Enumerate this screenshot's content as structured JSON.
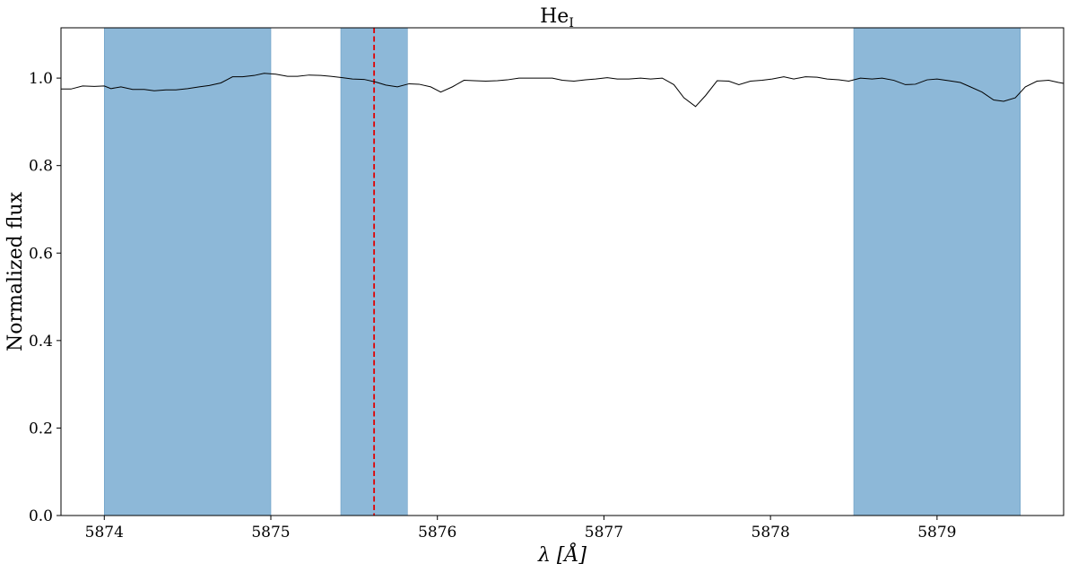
{
  "chart_data": {
    "type": "line",
    "title": "He",
    "title_subscript": "I",
    "xlabel": "λ [Å]",
    "ylabel": "Normalized flux",
    "xlim": [
      5873.74,
      5879.76
    ],
    "ylim": [
      0.0,
      1.115
    ],
    "x_ticks": [
      5874,
      5875,
      5876,
      5877,
      5878,
      5879
    ],
    "y_ticks": [
      0.0,
      0.2,
      0.4,
      0.6,
      0.8,
      1.0
    ],
    "x_tick_labels": [
      "5874",
      "5875",
      "5876",
      "5877",
      "5878",
      "5879"
    ],
    "y_tick_labels": [
      "0.0",
      "0.2",
      "0.4",
      "0.6",
      "0.8",
      "1.0"
    ],
    "grid": false,
    "colors": {
      "line": "#000000",
      "band": "#8db8d8",
      "marker": "#e00000"
    },
    "shaded_bands": [
      {
        "x0": 5874.0,
        "x1": 5875.0
      },
      {
        "x0": 5875.42,
        "x1": 5875.82
      },
      {
        "x0": 5878.5,
        "x1": 5879.5
      }
    ],
    "vertical_lines": [
      {
        "x": 5875.62,
        "style": "dashed"
      }
    ],
    "series": [
      {
        "x": [
          5873.74,
          5873.8,
          5873.87,
          5873.94,
          5874.0,
          5874.04,
          5874.1,
          5874.17,
          5874.24,
          5874.3,
          5874.37,
          5874.43,
          5874.5,
          5874.57,
          5874.63,
          5874.7,
          5874.77,
          5874.83,
          5874.9,
          5874.96,
          5875.03,
          5875.1,
          5875.16,
          5875.23,
          5875.3,
          5875.36,
          5875.43,
          5875.49,
          5875.56,
          5875.63,
          5875.69,
          5875.76,
          5875.83,
          5875.89,
          5875.96,
          5876.02,
          5876.09,
          5876.16,
          5876.22,
          5876.29,
          5876.36,
          5876.42,
          5876.49,
          5876.55,
          5876.62,
          5876.69,
          5876.75,
          5876.82,
          5876.89,
          5876.95,
          5877.02,
          5877.08,
          5877.15,
          5877.22,
          5877.28,
          5877.35,
          5877.42,
          5877.48,
          5877.55,
          5877.61,
          5877.68,
          5877.75,
          5877.81,
          5877.88,
          5877.95,
          5878.01,
          5878.08,
          5878.14,
          5878.21,
          5878.28,
          5878.34,
          5878.41,
          5878.47,
          5878.54,
          5878.61,
          5878.67,
          5878.74,
          5878.81,
          5878.87,
          5878.94,
          5879.0,
          5879.07,
          5879.14,
          5879.2,
          5879.27,
          5879.34,
          5879.4,
          5879.47,
          5879.53,
          5879.6,
          5879.67,
          5879.73,
          5879.76
        ],
        "y": [
          0.975,
          0.975,
          0.982,
          0.981,
          0.982,
          0.976,
          0.98,
          0.974,
          0.974,
          0.971,
          0.973,
          0.973,
          0.976,
          0.98,
          0.983,
          0.989,
          1.003,
          1.003,
          1.006,
          1.011,
          1.009,
          1.004,
          1.004,
          1.007,
          1.006,
          1.004,
          1.001,
          0.998,
          0.997,
          0.991,
          0.984,
          0.98,
          0.987,
          0.986,
          0.98,
          0.968,
          0.98,
          0.995,
          0.994,
          0.993,
          0.994,
          0.996,
          1.0,
          1.0,
          1.0,
          1.0,
          0.995,
          0.993,
          0.996,
          0.998,
          1.001,
          0.998,
          0.998,
          1.0,
          0.998,
          1.0,
          0.985,
          0.955,
          0.935,
          0.96,
          0.994,
          0.993,
          0.985,
          0.993,
          0.995,
          0.998,
          1.003,
          0.998,
          1.003,
          1.002,
          0.998,
          0.996,
          0.993,
          1.0,
          0.998,
          1.0,
          0.995,
          0.985,
          0.986,
          0.996,
          0.998,
          0.994,
          0.99,
          0.98,
          0.968,
          0.95,
          0.947,
          0.955,
          0.98,
          0.993,
          0.995,
          0.99,
          0.988
        ]
      }
    ]
  }
}
